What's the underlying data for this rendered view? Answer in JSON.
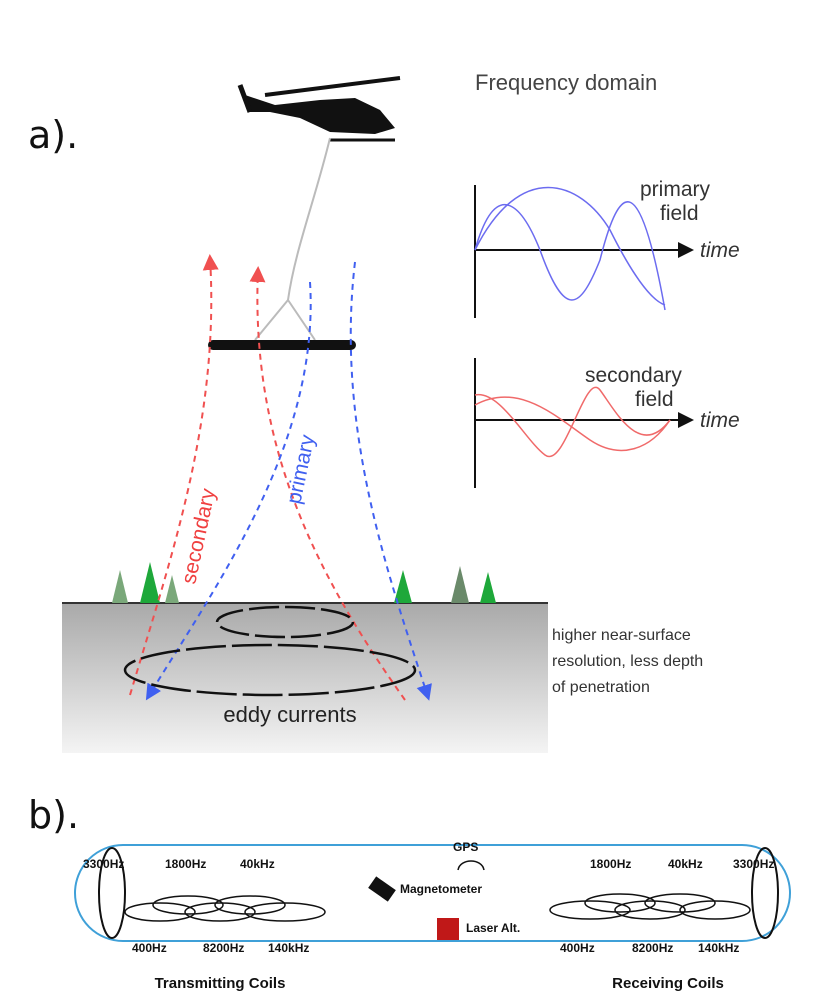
{
  "panel_a": {
    "label": "a).",
    "title": "Frequency domain",
    "primary_plot": {
      "label": [
        "primary",
        "field"
      ],
      "axis_label": "time"
    },
    "secondary_plot": {
      "label": [
        "secondary",
        "field"
      ],
      "axis_label": "time"
    },
    "ray_labels": {
      "secondary": "secondary",
      "primary": "primary"
    },
    "ground_note": [
      "higher near-surface",
      "resolution, less depth",
      "of penetration"
    ],
    "eddy_label": "eddy currents"
  },
  "panel_b": {
    "label": "b).",
    "gps": "GPS",
    "magnetometer": "Magnetometer",
    "laser": "Laser Alt.",
    "transmitting": {
      "top": [
        "3300Hz",
        "1800Hz",
        "40kHz"
      ],
      "bottom": [
        "400Hz",
        "8200Hz",
        "140kHz"
      ],
      "caption": "Transmitting Coils"
    },
    "receiving": {
      "top": [
        "1800Hz",
        "40kHz",
        "3300Hz"
      ],
      "bottom": [
        "400Hz",
        "8200Hz",
        "140kHz"
      ],
      "caption": "Receiving Coils"
    }
  }
}
